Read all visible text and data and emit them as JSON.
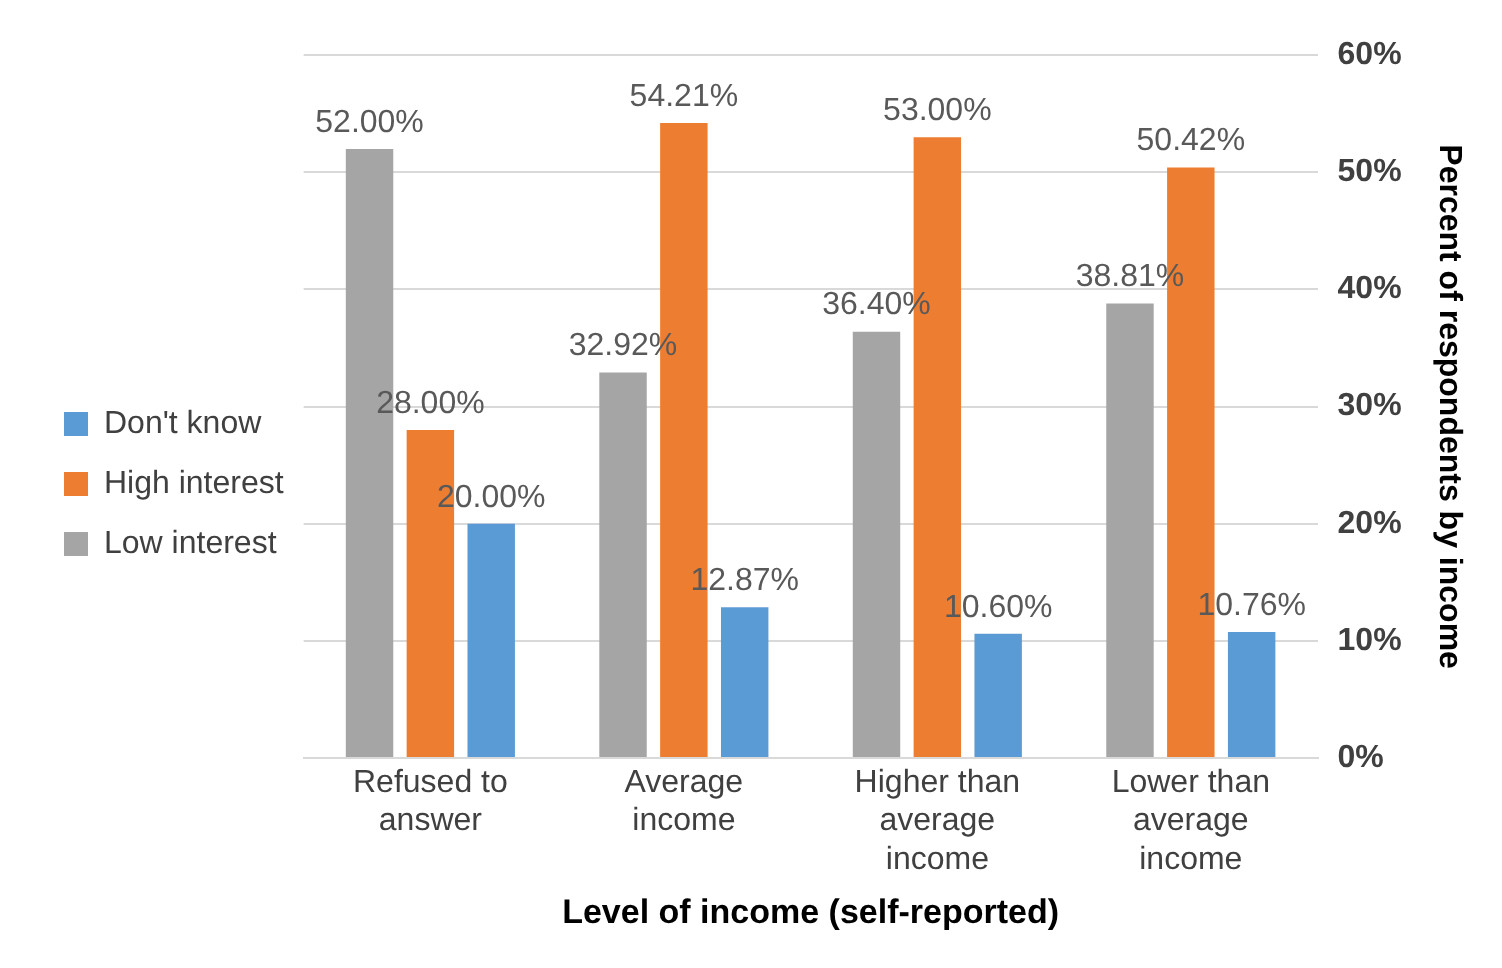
{
  "chart_data": {
    "type": "bar",
    "xlabel": "Level of income (self-reported)",
    "ylabel": "Percent of respondents by income",
    "categories": [
      "Refused to answer",
      "Average income",
      "Higher than average income",
      "Lower than average income"
    ],
    "series": [
      {
        "name": "Low interest",
        "color": "#a5a5a5",
        "values": [
          52.0,
          32.92,
          36.4,
          38.81
        ],
        "value_labels": [
          "52.00%",
          "32.92%",
          "36.40%",
          "38.81%"
        ]
      },
      {
        "name": "High interest",
        "color": "#ed7d31",
        "values": [
          28.0,
          54.21,
          53.0,
          50.42
        ],
        "value_labels": [
          "28.00%",
          "54.21%",
          "53.00%",
          "50.42%"
        ]
      },
      {
        "name": "Don't know",
        "color": "#5b9bd5",
        "values": [
          20.0,
          12.87,
          10.6,
          10.76
        ],
        "value_labels": [
          "20.00%",
          "12.87%",
          "10.60%",
          "10.76%"
        ]
      }
    ],
    "ylim": [
      0,
      60
    ],
    "yticks": [
      {
        "value": 0,
        "label": "0%"
      },
      {
        "value": 10,
        "label": "10%"
      },
      {
        "value": 20,
        "label": "20%"
      },
      {
        "value": 30,
        "label": "30%"
      },
      {
        "value": 40,
        "label": "40%"
      },
      {
        "value": 50,
        "label": "50%"
      },
      {
        "value": 60,
        "label": "60%"
      }
    ],
    "grid": "y",
    "legend": "left"
  }
}
